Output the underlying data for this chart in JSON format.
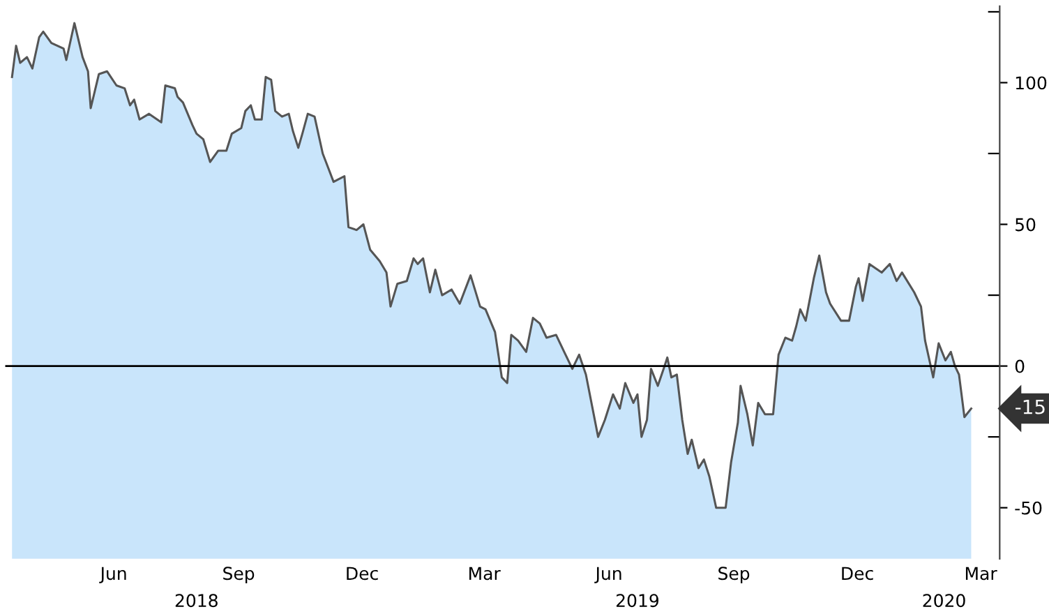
{
  "chart_data": {
    "type": "area",
    "color": "#c9e5fb",
    "x": [
      "2018-03-18",
      "2018-03-21",
      "2018-03-24",
      "2018-03-29",
      "2018-04-02",
      "2018-04-07",
      "2018-04-10",
      "2018-04-16",
      "2018-04-25",
      "2018-04-27",
      "2018-05-03",
      "2018-05-09",
      "2018-05-13",
      "2018-05-15",
      "2018-05-21",
      "2018-05-27",
      "2018-06-03",
      "2018-06-09",
      "2018-06-13",
      "2018-06-16",
      "2018-06-20",
      "2018-06-27",
      "2018-07-06",
      "2018-07-09",
      "2018-07-16",
      "2018-07-18",
      "2018-07-22",
      "2018-07-29",
      "2018-08-01",
      "2018-08-06",
      "2018-08-11",
      "2018-08-17",
      "2018-08-23",
      "2018-08-27",
      "2018-09-03",
      "2018-09-06",
      "2018-09-10",
      "2018-09-13",
      "2018-09-18",
      "2018-09-21",
      "2018-09-25",
      "2018-09-28",
      "2018-10-03",
      "2018-10-08",
      "2018-10-11",
      "2018-10-15",
      "2018-10-18",
      "2018-10-22",
      "2018-10-27",
      "2018-11-02",
      "2018-11-06",
      "2018-11-10",
      "2018-11-18",
      "2018-11-21",
      "2018-11-27",
      "2018-12-02",
      "2018-12-07",
      "2018-12-14",
      "2018-12-19",
      "2018-12-22",
      "2018-12-27",
      "2019-01-03",
      "2019-01-08",
      "2019-01-11",
      "2019-01-15",
      "2019-01-20",
      "2019-01-24",
      "2019-01-29",
      "2019-02-05",
      "2019-02-11",
      "2019-02-19",
      "2019-02-26",
      "2019-03-02",
      "2019-03-09",
      "2019-03-14",
      "2019-03-18",
      "2019-03-21",
      "2019-03-26",
      "2019-04-01",
      "2019-04-06",
      "2019-04-11",
      "2019-04-16",
      "2019-04-23",
      "2019-04-29",
      "2019-05-05",
      "2019-05-10",
      "2019-05-15",
      "2019-05-24",
      "2019-05-29",
      "2019-06-04",
      "2019-06-09",
      "2019-06-13",
      "2019-06-19",
      "2019-06-22",
      "2019-06-25",
      "2019-06-29",
      "2019-07-02",
      "2019-07-07",
      "2019-07-12",
      "2019-07-14",
      "2019-07-17",
      "2019-07-21",
      "2019-07-25",
      "2019-07-29",
      "2019-08-01",
      "2019-08-06",
      "2019-08-10",
      "2019-08-14",
      "2019-08-19",
      "2019-08-26",
      "2019-08-30",
      "2019-09-04",
      "2019-09-06",
      "2019-09-11",
      "2019-09-15",
      "2019-09-19",
      "2019-09-24",
      "2019-09-30",
      "2019-10-04",
      "2019-10-09",
      "2019-10-14",
      "2019-10-17",
      "2019-10-20",
      "2019-10-24",
      "2019-10-30",
      "2019-11-03",
      "2019-11-08",
      "2019-11-11",
      "2019-11-19",
      "2019-11-25",
      "2019-11-30",
      "2019-12-02",
      "2019-12-05",
      "2019-12-10",
      "2019-12-19",
      "2019-12-25",
      "2019-12-30",
      "2020-01-03",
      "2020-01-12",
      "2020-01-17",
      "2020-01-20",
      "2020-01-26",
      "2020-01-30",
      "2020-02-04",
      "2020-02-08",
      "2020-02-11",
      "2020-02-14",
      "2020-02-18",
      "2020-02-23"
    ],
    "values": [
      102,
      113,
      107,
      109,
      105,
      116,
      118,
      114,
      112,
      108,
      121,
      109,
      104,
      91,
      103,
      104,
      99,
      98,
      92,
      94,
      87,
      89,
      86,
      99,
      98,
      95,
      93,
      85,
      82,
      80,
      72,
      76,
      76,
      82,
      84,
      90,
      92,
      87,
      87,
      102,
      101,
      90,
      88,
      89,
      83,
      77,
      82,
      89,
      88,
      75,
      70,
      65,
      67,
      49,
      48,
      50,
      41,
      37,
      33,
      21,
      29,
      30,
      38,
      36,
      38,
      26,
      34,
      25,
      27,
      22,
      32,
      21,
      20,
      12,
      -4,
      -6,
      11,
      9,
      5,
      17,
      15,
      10,
      11,
      5,
      -1,
      4,
      -3,
      -25,
      -19,
      -10,
      -15,
      -6,
      -13,
      -10,
      -25,
      -19,
      -1,
      -7,
      0,
      3,
      -4,
      -3,
      -19,
      -31,
      -26,
      -36,
      -33,
      -39,
      -50,
      -50,
      -34,
      -20,
      -7,
      -17,
      -28,
      -13,
      -17,
      -17,
      4,
      10,
      9,
      14,
      20,
      16,
      31,
      39,
      26,
      22,
      16,
      16,
      28,
      31,
      23,
      36,
      33,
      36,
      30,
      33,
      26,
      21,
      9,
      -4,
      8,
      2,
      5,
      0,
      -3,
      -18,
      -15
    ],
    "xlim": [
      "2018-03-13",
      "2020-03-15"
    ],
    "x2lim": [
      "2018-03-13",
      "2020-03-15"
    ],
    "xticks": [
      {
        "value": "2018-06-01",
        "label": "Jun"
      },
      {
        "value": "2018-09-01",
        "label": "Sep"
      },
      {
        "value": "2018-12-01",
        "label": "Dec"
      },
      {
        "value": "2019-03-01",
        "label": "Mar"
      },
      {
        "value": "2019-06-01",
        "label": "Jun"
      },
      {
        "value": "2019-09-01",
        "label": "Sep"
      },
      {
        "value": "2019-12-01",
        "label": "Dec"
      },
      {
        "value": "2020-03-01",
        "label": "Mar"
      }
    ],
    "x2ticks": [
      {
        "value": "2018-08-01",
        "label": "2018"
      },
      {
        "value": "2019-06-22",
        "label": "2019"
      },
      {
        "value": "2020-02-03",
        "label": "2020"
      }
    ],
    "ylim": [
      -68,
      127
    ],
    "yticks": [
      {
        "value": -50,
        "label": "-50"
      },
      {
        "value": -25,
        "label": null
      },
      0,
      {
        "value": 25,
        "label": null
      },
      50,
      {
        "value": 75,
        "label": null
      },
      100,
      {
        "value": 125,
        "label": null
      }
    ],
    "ref_lines": [
      {
        "axis": "y",
        "value": 0,
        "color": "#000000"
      }
    ],
    "annotations": [
      {
        "text": "-15",
        "x": "2020-02-23",
        "y": -15
      }
    ],
    "grid": false,
    "legend": false
  }
}
